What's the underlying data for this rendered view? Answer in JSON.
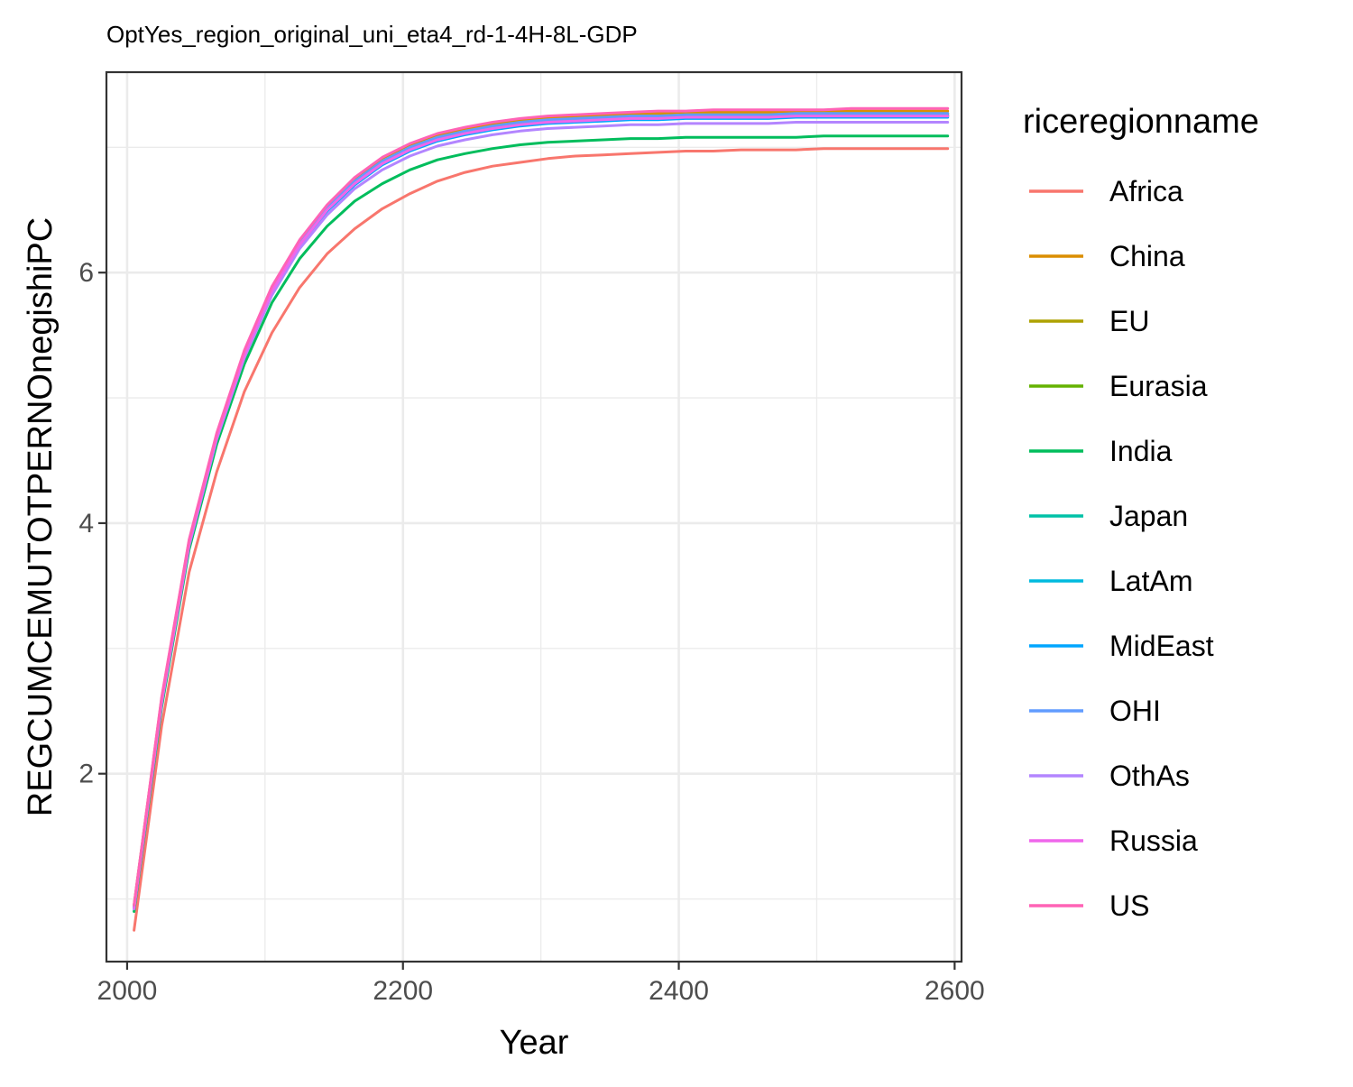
{
  "chart_data": {
    "type": "line",
    "title": "OptYes_region_original_uni_eta4_rd-1-4H-8L-GDP",
    "xlabel": "Year",
    "ylabel": "REGCUMCEMUTOTPERNOnegishiPC",
    "xlim": [
      1985,
      2605
    ],
    "ylim": [
      0.5,
      7.6
    ],
    "x_ticks": [
      2000,
      2200,
      2400,
      2600
    ],
    "x_tick_labels": [
      "2000",
      "2200",
      "2400",
      "2600"
    ],
    "y_ticks": [
      2,
      4,
      6
    ],
    "y_tick_labels": [
      "2",
      "4",
      "6"
    ],
    "grid": true,
    "legend_title": "riceregionname",
    "legend_position": "right",
    "x": [
      2005,
      2025,
      2045,
      2065,
      2085,
      2105,
      2125,
      2145,
      2165,
      2185,
      2205,
      2225,
      2245,
      2265,
      2285,
      2305,
      2325,
      2345,
      2365,
      2385,
      2405,
      2425,
      2445,
      2465,
      2485,
      2505,
      2525,
      2545,
      2565,
      2585,
      2595
    ],
    "series": [
      {
        "name": "Africa",
        "color": "#F8766D",
        "values": [
          0.75,
          2.38,
          3.61,
          4.41,
          5.05,
          5.52,
          5.88,
          6.15,
          6.35,
          6.51,
          6.63,
          6.73,
          6.8,
          6.85,
          6.88,
          6.91,
          6.93,
          6.94,
          6.95,
          6.96,
          6.97,
          6.97,
          6.98,
          6.98,
          6.98,
          6.99,
          6.99,
          6.99,
          6.99,
          6.99,
          6.99
        ]
      },
      {
        "name": "China",
        "color": "#DB8E00",
        "values": [
          0.95,
          2.6,
          3.86,
          4.71,
          5.37,
          5.88,
          6.25,
          6.53,
          6.75,
          6.91,
          7.02,
          7.1,
          7.15,
          7.19,
          7.22,
          7.24,
          7.25,
          7.26,
          7.27,
          7.27,
          7.28,
          7.28,
          7.28,
          7.28,
          7.29,
          7.29,
          7.29,
          7.29,
          7.29,
          7.29,
          7.29
        ]
      },
      {
        "name": "EU",
        "color": "#AEA200",
        "values": [
          0.94,
          2.59,
          3.85,
          4.7,
          5.36,
          5.87,
          6.24,
          6.52,
          6.73,
          6.89,
          7.0,
          7.08,
          7.13,
          7.17,
          7.2,
          7.22,
          7.23,
          7.24,
          7.25,
          7.25,
          7.26,
          7.26,
          7.26,
          7.26,
          7.27,
          7.27,
          7.27,
          7.27,
          7.27,
          7.27,
          7.27
        ]
      },
      {
        "name": "Eurasia",
        "color": "#64B200",
        "values": [
          0.93,
          2.58,
          3.84,
          4.69,
          5.34,
          5.85,
          6.22,
          6.5,
          6.71,
          6.87,
          6.98,
          7.06,
          7.11,
          7.15,
          7.18,
          7.2,
          7.21,
          7.22,
          7.23,
          7.23,
          7.24,
          7.24,
          7.24,
          7.24,
          7.25,
          7.25,
          7.25,
          7.25,
          7.25,
          7.25,
          7.25
        ]
      },
      {
        "name": "India",
        "color": "#00BD5C",
        "values": [
          0.9,
          2.53,
          3.79,
          4.63,
          5.27,
          5.76,
          6.11,
          6.37,
          6.57,
          6.71,
          6.82,
          6.9,
          6.95,
          6.99,
          7.02,
          7.04,
          7.05,
          7.06,
          7.07,
          7.07,
          7.08,
          7.08,
          7.08,
          7.08,
          7.08,
          7.09,
          7.09,
          7.09,
          7.09,
          7.09,
          7.09
        ]
      },
      {
        "name": "Japan",
        "color": "#00C1A7",
        "values": [
          0.94,
          2.59,
          3.85,
          4.7,
          5.35,
          5.86,
          6.23,
          6.51,
          6.72,
          6.88,
          6.99,
          7.07,
          7.12,
          7.16,
          7.19,
          7.21,
          7.22,
          7.23,
          7.24,
          7.24,
          7.25,
          7.25,
          7.25,
          7.25,
          7.26,
          7.26,
          7.26,
          7.26,
          7.26,
          7.26,
          7.26
        ]
      },
      {
        "name": "LatAm",
        "color": "#00BADE",
        "values": [
          0.93,
          2.58,
          3.84,
          4.69,
          5.34,
          5.85,
          6.22,
          6.5,
          6.71,
          6.87,
          6.98,
          7.06,
          7.11,
          7.15,
          7.18,
          7.2,
          7.21,
          7.22,
          7.23,
          7.23,
          7.24,
          7.24,
          7.24,
          7.24,
          7.25,
          7.25,
          7.25,
          7.25,
          7.25,
          7.25,
          7.25
        ]
      },
      {
        "name": "MidEast",
        "color": "#00A6FF",
        "values": [
          0.93,
          2.58,
          3.84,
          4.69,
          5.34,
          5.84,
          6.21,
          6.49,
          6.7,
          6.86,
          6.97,
          7.05,
          7.1,
          7.14,
          7.17,
          7.19,
          7.2,
          7.21,
          7.22,
          7.22,
          7.23,
          7.23,
          7.23,
          7.23,
          7.24,
          7.24,
          7.24,
          7.24,
          7.24,
          7.24,
          7.24
        ]
      },
      {
        "name": "OHI",
        "color": "#619CFF",
        "values": [
          0.94,
          2.59,
          3.85,
          4.7,
          5.36,
          5.87,
          6.24,
          6.52,
          6.73,
          6.89,
          7.0,
          7.08,
          7.13,
          7.17,
          7.2,
          7.22,
          7.23,
          7.24,
          7.25,
          7.25,
          7.26,
          7.26,
          7.26,
          7.26,
          7.27,
          7.27,
          7.27,
          7.27,
          7.27,
          7.27,
          7.27
        ]
      },
      {
        "name": "OthAs",
        "color": "#B385FF",
        "values": [
          0.92,
          2.56,
          3.82,
          4.67,
          5.32,
          5.82,
          6.19,
          6.46,
          6.67,
          6.82,
          6.93,
          7.01,
          7.06,
          7.1,
          7.13,
          7.15,
          7.16,
          7.17,
          7.18,
          7.18,
          7.19,
          7.19,
          7.19,
          7.19,
          7.2,
          7.2,
          7.2,
          7.2,
          7.2,
          7.2,
          7.2
        ]
      },
      {
        "name": "Russia",
        "color": "#EF67EB",
        "values": [
          0.93,
          2.58,
          3.84,
          4.69,
          5.34,
          5.85,
          6.22,
          6.5,
          6.71,
          6.87,
          6.98,
          7.06,
          7.11,
          7.15,
          7.18,
          7.2,
          7.21,
          7.22,
          7.23,
          7.23,
          7.24,
          7.24,
          7.24,
          7.24,
          7.25,
          7.25,
          7.25,
          7.25,
          7.25,
          7.25,
          7.25
        ]
      },
      {
        "name": "US",
        "color": "#FF63B6",
        "values": [
          0.95,
          2.61,
          3.87,
          4.72,
          5.38,
          5.89,
          6.26,
          6.54,
          6.76,
          6.92,
          7.03,
          7.11,
          7.16,
          7.2,
          7.23,
          7.25,
          7.26,
          7.27,
          7.28,
          7.29,
          7.29,
          7.3,
          7.3,
          7.3,
          7.3,
          7.3,
          7.31,
          7.31,
          7.31,
          7.31,
          7.31
        ]
      }
    ]
  }
}
